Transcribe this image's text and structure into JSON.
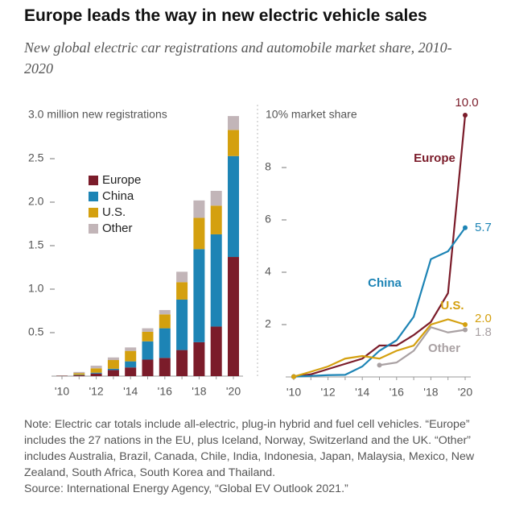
{
  "title": "Europe leads the way in new electric vehicle sales",
  "subtitle": "New global electric car registrations and automobile market share, 2010-2020",
  "chart_data": [
    {
      "type": "bar",
      "stacked": true,
      "categories": [
        "'10",
        null,
        "'12",
        null,
        "'14",
        null,
        "'16",
        null,
        "'18",
        null,
        "'20"
      ],
      "ylim": [
        0,
        3.0
      ],
      "yticks": [
        0.5,
        {
          "value": 1.0,
          "label": "1.0"
        },
        1.5,
        {
          "value": 2.0,
          "label": "2.0"
        },
        2.5,
        {
          "value": 3.0,
          "label": "3.0 million new registrations"
        }
      ],
      "series": [
        {
          "name": "Europe",
          "color": "#7b1c2a",
          "values": [
            0.004,
            0.01,
            0.03,
            0.07,
            0.1,
            0.19,
            0.21,
            0.3,
            0.39,
            0.57,
            1.37
          ]
        },
        {
          "name": "China",
          "color": "#1d84b5",
          "values": [
            0.001,
            0.005,
            0.01,
            0.015,
            0.07,
            0.21,
            0.34,
            0.58,
            1.07,
            1.06,
            1.16
          ]
        },
        {
          "name": "U.S.",
          "color": "#d4a00f",
          "values": [
            0.001,
            0.018,
            0.05,
            0.1,
            0.12,
            0.11,
            0.16,
            0.2,
            0.36,
            0.33,
            0.3
          ]
        },
        {
          "name": "Other",
          "color": "#c2b5b8",
          "values": [
            0.001,
            0.015,
            0.03,
            0.03,
            0.04,
            0.04,
            0.05,
            0.12,
            0.2,
            0.17,
            0.16
          ]
        }
      ]
    },
    {
      "type": "line",
      "categories": [
        "'10",
        null,
        "'12",
        null,
        "'14",
        null,
        "'16",
        null,
        "'18",
        null,
        "'20"
      ],
      "ylim": [
        0,
        10
      ],
      "yticks": [
        2,
        4,
        6,
        8,
        {
          "value": 10,
          "label": "10% market share"
        }
      ],
      "series": [
        {
          "name": "Europe",
          "color": "#7b1c2a",
          "values": [
            0.01,
            0.1,
            0.3,
            0.5,
            0.7,
            1.2,
            1.2,
            1.6,
            2.1,
            3.2,
            10.0
          ],
          "value_labels": [
            null,
            null,
            null,
            null,
            null,
            null,
            null,
            null,
            null,
            null,
            "10.0"
          ]
        },
        {
          "name": "China",
          "color": "#1d84b5",
          "values": [
            0.01,
            0.04,
            0.07,
            0.08,
            0.4,
            1.0,
            1.4,
            2.3,
            4.5,
            4.8,
            5.7
          ]
        },
        {
          "name": "U.S.",
          "color": "#d4a00f",
          "values": [
            0.01,
            0.2,
            0.4,
            0.7,
            0.8,
            0.7,
            1.0,
            1.2,
            2.0,
            2.2,
            2.0
          ],
          "value_labels": [
            null,
            null,
            null,
            null,
            null,
            null,
            null,
            null,
            null,
            null,
            "2.0"
          ]
        },
        {
          "name": "Other",
          "color": "#a9a1a3",
          "values": [
            null,
            null,
            null,
            null,
            null,
            0.45,
            0.55,
            1.0,
            1.9,
            1.7,
            1.8
          ]
        }
      ]
    }
  ],
  "note": "Note: Electric car totals include all-electric, plug-in hybrid and fuel cell vehicles. “Europe” includes the 27 nations in the EU, plus Iceland, Norway, Switzerland and the UK. “Other” includes Australia, Brazil, Canada, Chile, India, Indonesia, Japan, Malaysia, Mexico, New Zealand, South Africa, South Korea and Thailand.",
  "source": "Source: International Energy Agency, “Global EV Outlook 2021.”"
}
